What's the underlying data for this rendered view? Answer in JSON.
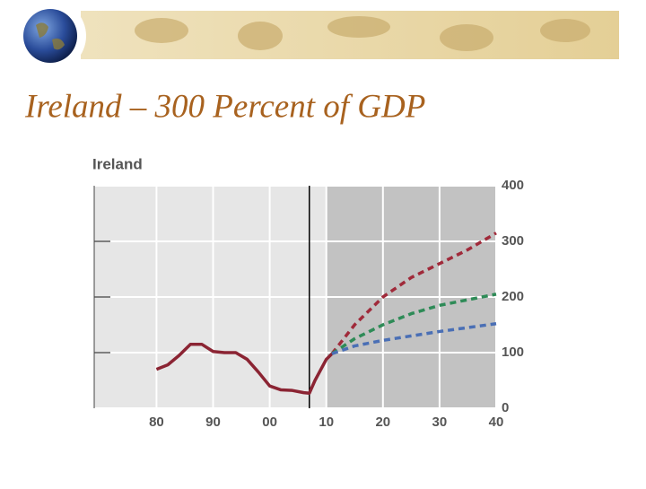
{
  "chart_data": {
    "type": "line",
    "slide_title": "Ireland – 300 Percent of GDP",
    "title": "Ireland",
    "xlim": [
      1969,
      2040
    ],
    "xticks": [
      {
        "value": 1980,
        "label": "80"
      },
      {
        "value": 1990,
        "label": "90"
      },
      {
        "value": 2000,
        "label": "00"
      },
      {
        "value": 2010,
        "label": "10"
      },
      {
        "value": 2020,
        "label": "20"
      },
      {
        "value": 2030,
        "label": "30"
      },
      {
        "value": 2040,
        "label": "40"
      }
    ],
    "ylim": [
      0,
      400
    ],
    "yticks": [
      0,
      100,
      200,
      300,
      400
    ],
    "grid": true,
    "shaded_from": 2010,
    "vline": 2007,
    "series": [
      {
        "color": "#8b2433",
        "dash": false,
        "x": [
          1980,
          1982,
          1984,
          1986,
          1988,
          1990,
          1992,
          1994,
          1996,
          1998,
          2000,
          2002,
          2004,
          2006,
          2007,
          2008,
          2010,
          2011
        ],
        "values": [
          70,
          78,
          95,
          115,
          115,
          102,
          100,
          100,
          88,
          65,
          40,
          33,
          32,
          28,
          27,
          50,
          88,
          98
        ]
      },
      {
        "color": "#a02a3a",
        "dash": true,
        "x": [
          2011,
          2015,
          2020,
          2025,
          2030,
          2035,
          2040
        ],
        "values": [
          98,
          150,
          200,
          235,
          260,
          285,
          315
        ]
      },
      {
        "color": "#2e8b57",
        "dash": true,
        "x": [
          2011,
          2015,
          2020,
          2025,
          2030,
          2035,
          2040
        ],
        "values": [
          98,
          125,
          150,
          170,
          185,
          195,
          205
        ]
      },
      {
        "color": "#4a6fb5",
        "dash": true,
        "x": [
          2011,
          2015,
          2020,
          2025,
          2030,
          2035,
          2040
        ],
        "values": [
          98,
          112,
          122,
          130,
          138,
          145,
          152
        ]
      }
    ]
  }
}
